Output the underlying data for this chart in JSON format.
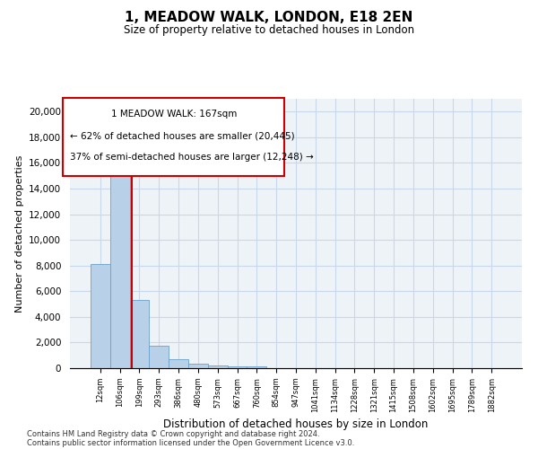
{
  "title": "1, MEADOW WALK, LONDON, E18 2EN",
  "subtitle": "Size of property relative to detached houses in London",
  "xlabel": "Distribution of detached houses by size in London",
  "ylabel": "Number of detached properties",
  "bar_color": "#b8d0e8",
  "bar_edge_color": "#6aa0cc",
  "grid_color": "#c8d8ea",
  "background_color": "#eef3f8",
  "vline_color": "#cc0000",
  "annotation_box_color": "#ffffff",
  "annotation_border_color": "#cc0000",
  "annotation_line1": "1 MEADOW WALK: 167sqm",
  "annotation_line2": "← 62% of detached houses are smaller (20,445)",
  "annotation_line3": "37% of semi-detached houses are larger (12,248) →",
  "categories": [
    "12sqm",
    "106sqm",
    "199sqm",
    "293sqm",
    "386sqm",
    "480sqm",
    "573sqm",
    "667sqm",
    "760sqm",
    "854sqm",
    "947sqm",
    "1041sqm",
    "1134sqm",
    "1228sqm",
    "1321sqm",
    "1415sqm",
    "1508sqm",
    "1602sqm",
    "1695sqm",
    "1789sqm",
    "1882sqm"
  ],
  "values": [
    8100,
    16500,
    5300,
    1750,
    700,
    330,
    220,
    175,
    150,
    0,
    0,
    0,
    0,
    0,
    0,
    0,
    0,
    0,
    0,
    0,
    0
  ],
  "ylim": [
    0,
    21000
  ],
  "yticks": [
    0,
    2000,
    4000,
    6000,
    8000,
    10000,
    12000,
    14000,
    16000,
    18000,
    20000
  ],
  "vline_idx": 1.62,
  "footnote1": "Contains HM Land Registry data © Crown copyright and database right 2024.",
  "footnote2": "Contains public sector information licensed under the Open Government Licence v3.0."
}
